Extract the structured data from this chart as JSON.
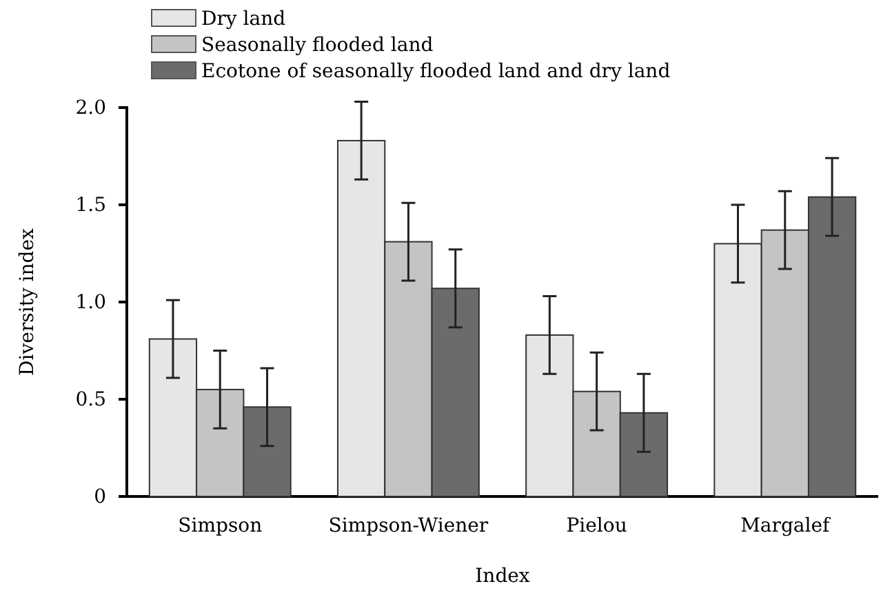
{
  "chart_data": {
    "type": "bar",
    "xlabel": "Index",
    "ylabel": "Diversity index",
    "categories": [
      "Simpson",
      "Simpson-Wiener",
      "Pielou",
      "Margalef"
    ],
    "series": [
      {
        "name": "Dry land",
        "color": "#e6e6e6",
        "values": [
          0.81,
          1.83,
          0.83,
          1.3
        ],
        "errors": [
          0.2,
          0.2,
          0.2,
          0.2
        ]
      },
      {
        "name": "Seasonally flooded land",
        "color": "#c4c4c4",
        "values": [
          0.55,
          1.31,
          0.54,
          1.37
        ],
        "errors": [
          0.2,
          0.2,
          0.2,
          0.2
        ]
      },
      {
        "name": "Ecotone of seasonally flooded land and dry land",
        "color": "#6b6b6b",
        "values": [
          0.46,
          1.07,
          0.43,
          1.54
        ],
        "errors": [
          0.2,
          0.2,
          0.2,
          0.2
        ]
      }
    ],
    "ylim": [
      0,
      2.0
    ],
    "yticks": [
      {
        "value": 0,
        "label": "0"
      },
      {
        "value": 0.5,
        "label": "0.5"
      },
      {
        "value": 1.0,
        "label": "1.0"
      },
      {
        "value": 1.5,
        "label": "1.5"
      },
      {
        "value": 2.0,
        "label": "2.0"
      }
    ],
    "grid": false,
    "legend": "top left"
  }
}
